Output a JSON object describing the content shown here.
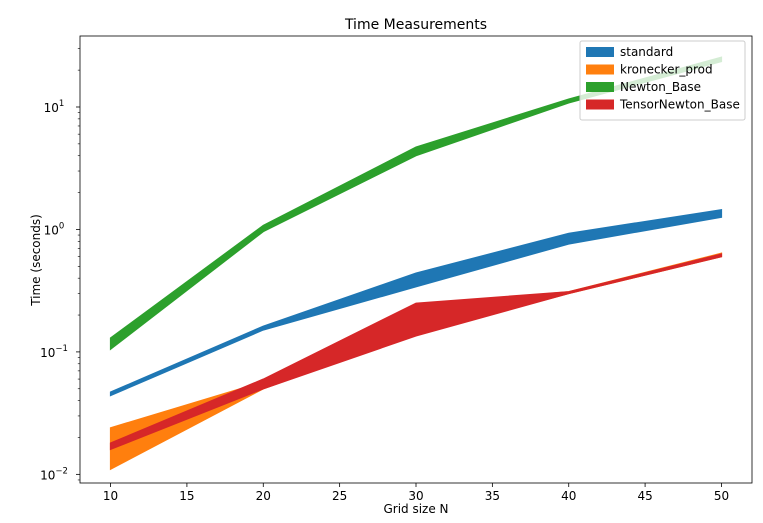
{
  "chart_data": {
    "type": "area",
    "title": "Time Measurements",
    "xlabel": "Grid size N",
    "ylabel": "Time (seconds)",
    "yscale": "log",
    "xlim": [
      8,
      52
    ],
    "ylim": [
      0.0085,
      38
    ],
    "x_ticks": [
      10,
      15,
      20,
      25,
      30,
      35,
      40,
      45,
      50
    ],
    "y_ticks": [
      {
        "value": 0.01,
        "base": "10",
        "exp": "−2"
      },
      {
        "value": 0.1,
        "base": "10",
        "exp": "−1"
      },
      {
        "value": 1,
        "base": "10",
        "exp": "0"
      },
      {
        "value": 10,
        "base": "10",
        "exp": "1"
      }
    ],
    "grid": false,
    "legend_position": "top-right",
    "x": [
      10,
      20,
      30,
      40,
      50
    ],
    "series": [
      {
        "name": "standard",
        "color": "#1f77b4",
        "lower": [
          0.044,
          0.151,
          0.34,
          0.76,
          1.26
        ],
        "upper": [
          0.047,
          0.162,
          0.44,
          0.93,
          1.45
        ]
      },
      {
        "name": "kronecker_prod",
        "color": "#ff7f0e",
        "lower": [
          0.011,
          0.05,
          0.14,
          0.3,
          0.6
        ],
        "upper": [
          0.024,
          0.057,
          0.24,
          0.31,
          0.64
        ]
      },
      {
        "name": "Newton_Base",
        "color": "#2ca02c",
        "lower": [
          0.105,
          0.96,
          4.0,
          10.8,
          23.5
        ],
        "upper": [
          0.13,
          1.08,
          4.7,
          11.6,
          25.5
        ]
      },
      {
        "name": "TensorNewton_Base",
        "color": "#d62728",
        "lower": [
          0.016,
          0.05,
          0.135,
          0.3,
          0.6
        ],
        "upper": [
          0.018,
          0.06,
          0.25,
          0.31,
          0.63
        ]
      }
    ]
  }
}
